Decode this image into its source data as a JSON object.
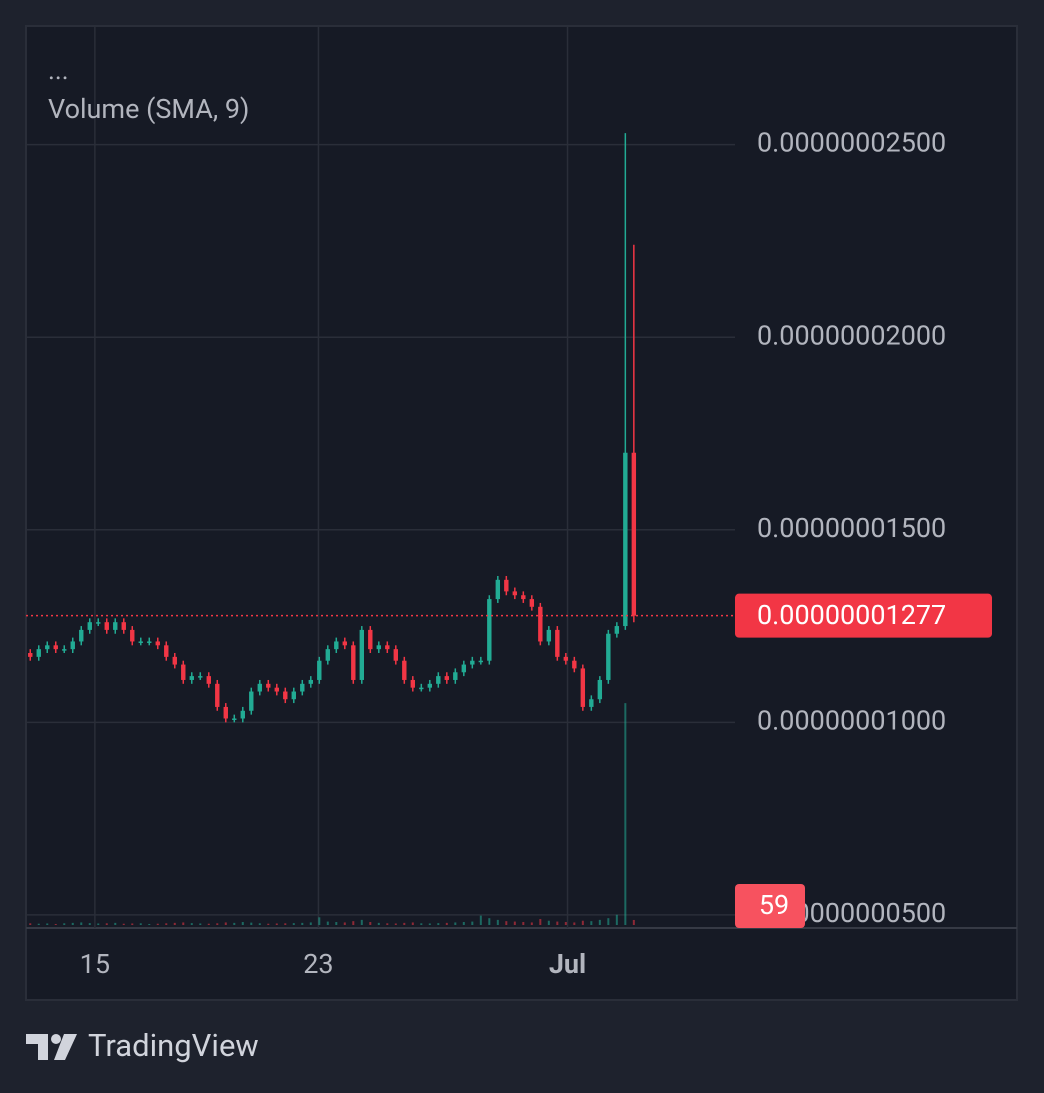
{
  "chart_data": {
    "type": "candlestick",
    "legend_title": "...",
    "indicator": "Volume (SMA, 9)",
    "brand": "TradingView",
    "up_color": "#22ab94",
    "down_color": "#f23645",
    "grid": true,
    "xlim": [
      -0.5,
      82.9
    ],
    "xticks": [
      {
        "value": 7.6,
        "label": "15"
      },
      {
        "value": 33.9,
        "label": "23"
      },
      {
        "value": 63.2,
        "label": "Jul"
      }
    ],
    "ylim": [
      4.66e-09,
      2.808e-08
    ],
    "yticks": [
      {
        "value": 5e-09,
        "label": "0.00000000500"
      },
      {
        "value": 1e-08,
        "label": "0.00000001000"
      },
      {
        "value": 1.5e-08,
        "label": "0.00000001500"
      },
      {
        "value": 2e-08,
        "label": "0.00000002000"
      },
      {
        "value": 2.5e-08,
        "label": "0.00000002500"
      }
    ],
    "open": [
      1.18e-08,
      1.17e-08,
      1.19e-08,
      1.2e-08,
      1.19e-08,
      1.19e-08,
      1.21e-08,
      1.24e-08,
      1.26e-08,
      1.26e-08,
      1.24e-08,
      1.26e-08,
      1.24e-08,
      1.21e-08,
      1.21e-08,
      1.21e-08,
      1.2e-08,
      1.17e-08,
      1.15e-08,
      1.11e-08,
      1.12e-08,
      1.12e-08,
      1.1e-08,
      1.04e-08,
      1.01e-08,
      1.01e-08,
      1.03e-08,
      1.08e-08,
      1.1e-08,
      1.09e-08,
      1.08e-08,
      1.06e-08,
      1.08e-08,
      1.1e-08,
      1.11e-08,
      1.16e-08,
      1.19e-08,
      1.21e-08,
      1.2e-08,
      1.11e-08,
      1.24e-08,
      1.19e-08,
      1.2e-08,
      1.19e-08,
      1.16e-08,
      1.11e-08,
      1.09e-08,
      1.09e-08,
      1.1e-08,
      1.12e-08,
      1.11e-08,
      1.13e-08,
      1.15e-08,
      1.16e-08,
      1.16e-08,
      1.32e-08,
      1.37e-08,
      1.34e-08,
      1.33e-08,
      1.32e-08,
      1.3e-08,
      1.21e-08,
      1.24e-08,
      1.17e-08,
      1.16e-08,
      1.14e-08,
      1.04e-08,
      1.06e-08,
      1.11e-08,
      1.23e-08,
      1.25e-08,
      1.7e-08
    ],
    "high": [
      1.19e-08,
      1.2e-08,
      1.21e-08,
      1.21e-08,
      1.2e-08,
      1.22e-08,
      1.25e-08,
      1.27e-08,
      1.27e-08,
      1.27e-08,
      1.27e-08,
      1.27e-08,
      1.25e-08,
      1.22e-08,
      1.22e-08,
      1.22e-08,
      1.21e-08,
      1.18e-08,
      1.16e-08,
      1.13e-08,
      1.13e-08,
      1.13e-08,
      1.11e-08,
      1.05e-08,
      1.02e-08,
      1.04e-08,
      1.09e-08,
      1.11e-08,
      1.11e-08,
      1.1e-08,
      1.09e-08,
      1.09e-08,
      1.11e-08,
      1.12e-08,
      1.17e-08,
      1.2e-08,
      1.22e-08,
      1.22e-08,
      1.21e-08,
      1.25e-08,
      1.25e-08,
      1.21e-08,
      1.21e-08,
      1.2e-08,
      1.17e-08,
      1.12e-08,
      1.1e-08,
      1.11e-08,
      1.13e-08,
      1.13e-08,
      1.14e-08,
      1.16e-08,
      1.17e-08,
      1.17e-08,
      1.33e-08,
      1.38e-08,
      1.38e-08,
      1.35e-08,
      1.34e-08,
      1.33e-08,
      1.31e-08,
      1.25e-08,
      1.25e-08,
      1.18e-08,
      1.17e-08,
      1.15e-08,
      1.07e-08,
      1.12e-08,
      1.24e-08,
      1.26e-08,
      2.53e-08,
      2.24e-08
    ],
    "low": [
      1.16e-08,
      1.16e-08,
      1.18e-08,
      1.18e-08,
      1.18e-08,
      1.18e-08,
      1.2e-08,
      1.23e-08,
      1.25e-08,
      1.23e-08,
      1.23e-08,
      1.23e-08,
      1.2e-08,
      1.2e-08,
      1.2e-08,
      1.19e-08,
      1.16e-08,
      1.14e-08,
      1.1e-08,
      1.1e-08,
      1.11e-08,
      1.09e-08,
      1.03e-08,
      1e-08,
      1e-08,
      1e-08,
      1.02e-08,
      1.07e-08,
      1.08e-08,
      1.07e-08,
      1.05e-08,
      1.05e-08,
      1.07e-08,
      1.09e-08,
      1.1e-08,
      1.15e-08,
      1.18e-08,
      1.19e-08,
      1.1e-08,
      1.1e-08,
      1.18e-08,
      1.18e-08,
      1.18e-08,
      1.15e-08,
      1.1e-08,
      1.08e-08,
      1.08e-08,
      1.08e-08,
      1.09e-08,
      1.1e-08,
      1.1e-08,
      1.12e-08,
      1.14e-08,
      1.15e-08,
      1.15e-08,
      1.31e-08,
      1.33e-08,
      1.32e-08,
      1.31e-08,
      1.29e-08,
      1.2e-08,
      1.2e-08,
      1.16e-08,
      1.15e-08,
      1.13e-08,
      1.03e-08,
      1.03e-08,
      1.05e-08,
      1.1e-08,
      1.22e-08,
      1.24e-08,
      1.26e-08
    ],
    "close": [
      1.17e-08,
      1.19e-08,
      1.2e-08,
      1.19e-08,
      1.19e-08,
      1.21e-08,
      1.24e-08,
      1.26e-08,
      1.26e-08,
      1.24e-08,
      1.26e-08,
      1.24e-08,
      1.21e-08,
      1.21e-08,
      1.21e-08,
      1.2e-08,
      1.17e-08,
      1.15e-08,
      1.11e-08,
      1.12e-08,
      1.12e-08,
      1.1e-08,
      1.04e-08,
      1.01e-08,
      1.01e-08,
      1.03e-08,
      1.08e-08,
      1.1e-08,
      1.09e-08,
      1.08e-08,
      1.06e-08,
      1.08e-08,
      1.1e-08,
      1.11e-08,
      1.16e-08,
      1.19e-08,
      1.21e-08,
      1.2e-08,
      1.11e-08,
      1.24e-08,
      1.19e-08,
      1.2e-08,
      1.19e-08,
      1.16e-08,
      1.11e-08,
      1.09e-08,
      1.09e-08,
      1.1e-08,
      1.12e-08,
      1.11e-08,
      1.13e-08,
      1.15e-08,
      1.16e-08,
      1.16e-08,
      1.32e-08,
      1.37e-08,
      1.34e-08,
      1.33e-08,
      1.32e-08,
      1.3e-08,
      1.21e-08,
      1.24e-08,
      1.17e-08,
      1.16e-08,
      1.14e-08,
      1.04e-08,
      1.06e-08,
      1.11e-08,
      1.23e-08,
      1.25e-08,
      1.7e-08,
      1.277e-08
    ],
    "last_price": {
      "value": 1.277e-08,
      "label": "0.00000001277"
    },
    "volume_lim": [
      0,
      3000
    ],
    "volume": [
      20,
      15,
      18,
      12,
      20,
      25,
      30,
      22,
      18,
      20,
      25,
      15,
      18,
      20,
      12,
      15,
      20,
      25,
      30,
      22,
      18,
      15,
      20,
      30,
      25,
      35,
      28,
      20,
      15,
      18,
      20,
      22,
      25,
      30,
      90,
      40,
      35,
      30,
      45,
      60,
      35,
      25,
      20,
      18,
      25,
      30,
      20,
      18,
      22,
      25,
      30,
      35,
      40,
      110,
      80,
      60,
      45,
      40,
      35,
      30,
      70,
      50,
      40,
      35,
      30,
      50,
      45,
      60,
      80,
      120,
      2600,
      59
    ]
  }
}
